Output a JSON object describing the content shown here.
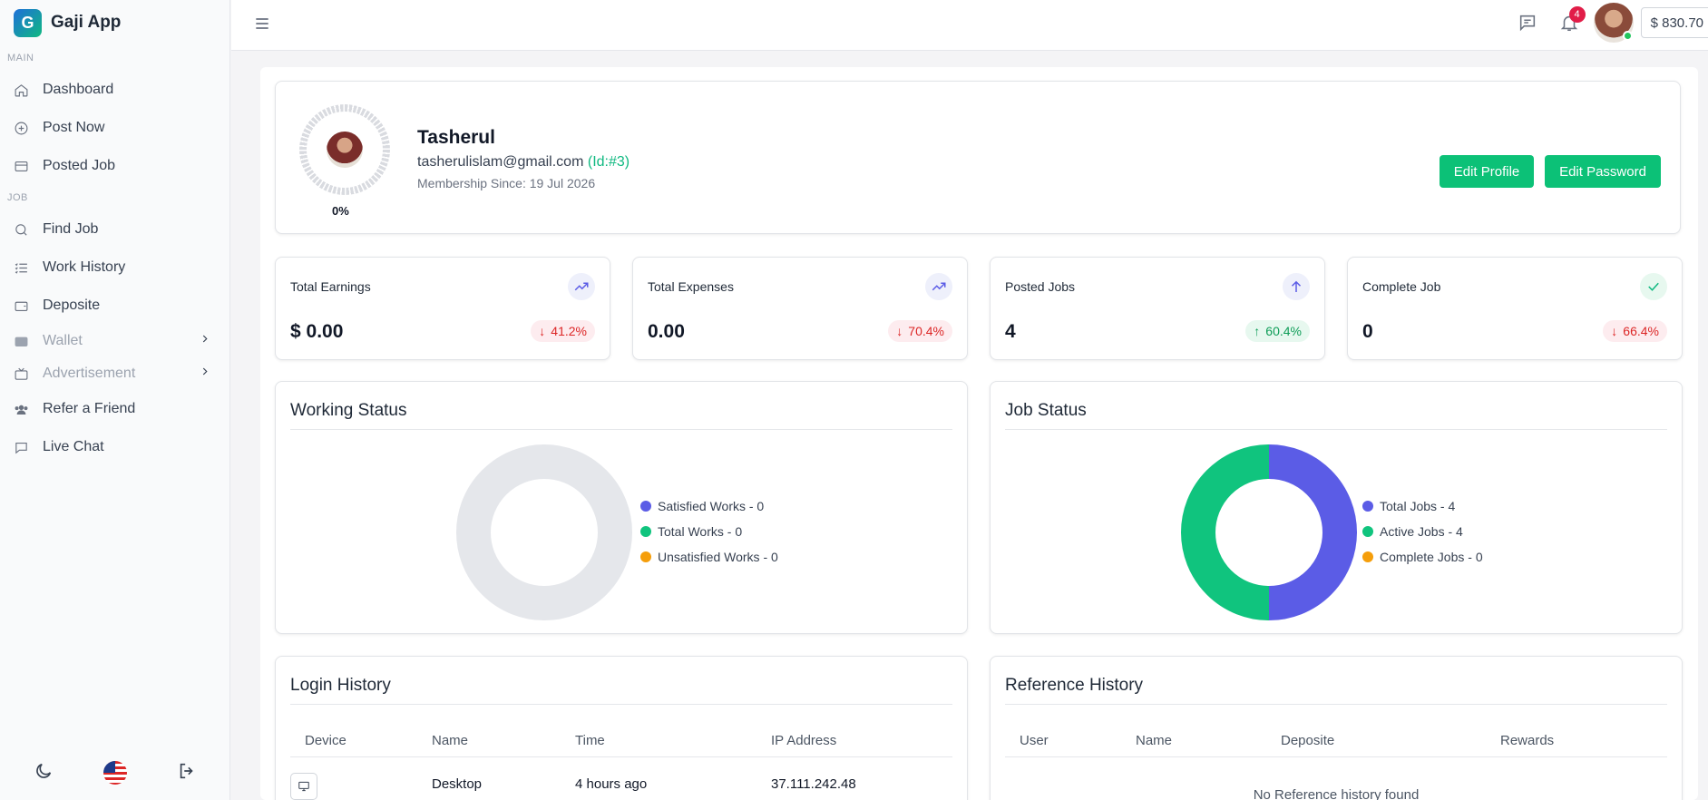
{
  "app": {
    "name": "Gaji App",
    "logo_letter": "G"
  },
  "sidebar": {
    "sections": [
      {
        "label": "MAIN"
      },
      {
        "label": "JOB"
      }
    ],
    "main_items": [
      {
        "label": "Dashboard",
        "icon": "home-icon"
      },
      {
        "label": "Post Now",
        "icon": "plus-circle-icon"
      },
      {
        "label": "Posted Job",
        "icon": "inbox-icon"
      }
    ],
    "job_items": [
      {
        "label": "Find Job",
        "icon": "search-icon"
      },
      {
        "label": "Work History",
        "icon": "list-check-icon"
      },
      {
        "label": "Deposite",
        "icon": "wallet-icon"
      },
      {
        "label": "Wallet",
        "icon": "wallet-fill-icon"
      },
      {
        "label": "Advertisement",
        "icon": "tv-icon"
      },
      {
        "label": "Refer a Friend",
        "icon": "users-icon"
      },
      {
        "label": "Live Chat",
        "icon": "chat-icon"
      }
    ]
  },
  "topbar": {
    "notification_count": "4",
    "balance": "$ 830.70"
  },
  "profile": {
    "name": "Tasherul",
    "email": "tasherulislam@gmail.com",
    "id_label": "(Id:#3)",
    "membership": "Membership Since: 19 Jul 2026",
    "progress_label": "0%",
    "progress_value": 0,
    "edit_profile_label": "Edit Profile",
    "edit_password_label": "Edit Password"
  },
  "stats": [
    {
      "title": "Total Earnings",
      "value": "$ 0.00",
      "delta": "41.2%",
      "direction": "down",
      "icon": "trending-up-icon"
    },
    {
      "title": "Total Expenses",
      "value": "0.00",
      "delta": "70.4%",
      "direction": "down",
      "icon": "trending-up-icon"
    },
    {
      "title": "Posted Jobs",
      "value": "4",
      "delta": "60.4%",
      "direction": "up",
      "icon": "arrow-up-icon"
    },
    {
      "title": "Complete Job",
      "value": "0",
      "delta": "66.4%",
      "direction": "down",
      "icon": "check-icon"
    }
  ],
  "colors": {
    "accent_green": "#0cc177",
    "series_blue": "#5b5ce6",
    "series_green": "#10c47e",
    "series_orange": "#f59e0b",
    "empty_ring": "#e5e7eb"
  },
  "working_status": {
    "title": "Working Status",
    "legend": [
      "Satisfied Works - 0",
      "Total Works - 0",
      "Unsatisfied Works - 0"
    ]
  },
  "job_status": {
    "title": "Job Status",
    "legend": [
      "Total Jobs - 4",
      "Active Jobs - 4",
      "Complete Jobs - 0"
    ]
  },
  "chart_data": [
    {
      "type": "pie",
      "title": "Working Status",
      "categories": [
        "Satisfied Works",
        "Total Works",
        "Unsatisfied Works"
      ],
      "values": [
        0,
        0,
        0
      ]
    },
    {
      "type": "pie",
      "title": "Job Status",
      "categories": [
        "Total Jobs",
        "Active Jobs",
        "Complete Jobs"
      ],
      "values": [
        4,
        4,
        0
      ]
    }
  ],
  "login_history": {
    "title": "Login History",
    "columns": [
      "Device",
      "Name",
      "Time",
      "IP Address"
    ],
    "rows": [
      {
        "device_icon": "monitor-icon",
        "name": "Desktop",
        "time": "4 hours ago",
        "ip": "37.111.242.48"
      }
    ]
  },
  "reference_history": {
    "title": "Reference History",
    "columns": [
      "User",
      "Name",
      "Deposite",
      "Rewards"
    ],
    "empty_message": "No Reference history found"
  }
}
